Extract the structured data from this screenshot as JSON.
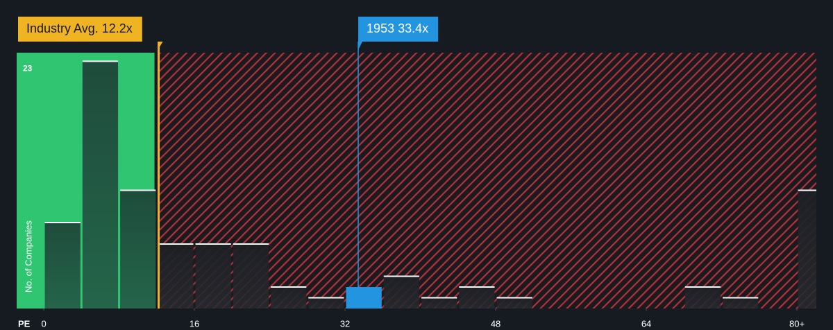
{
  "chart_data": {
    "type": "histogram",
    "x_label": "PE",
    "y_label": "No. of Companies",
    "bins": [
      0,
      4,
      8,
      12,
      16,
      20,
      24,
      28,
      32,
      36,
      40,
      44,
      48,
      52,
      56,
      60,
      64,
      68,
      72,
      76,
      80,
      84
    ],
    "values": [
      8,
      23,
      11,
      6,
      6,
      6,
      2,
      1,
      2,
      3,
      1,
      2,
      1,
      0,
      0,
      0,
      0,
      2,
      1,
      0,
      11
    ],
    "xlim": [
      -2.88,
      82.06
    ],
    "ylim": [
      0,
      23.8
    ],
    "xticks": [
      0,
      16,
      32,
      48,
      64,
      {
        "value": 80,
        "label": "80+"
      }
    ],
    "yticks": [
      23
    ],
    "highlight_bin": 8,
    "highlight_color": "#2394e0",
    "annotations": [
      {
        "text": "Industry Avg. 12.2x",
        "value": 12.2,
        "color": "#f0b322"
      },
      {
        "text": "1953 33.4x",
        "value": 33.4,
        "color": "#2394e0"
      }
    ]
  }
}
